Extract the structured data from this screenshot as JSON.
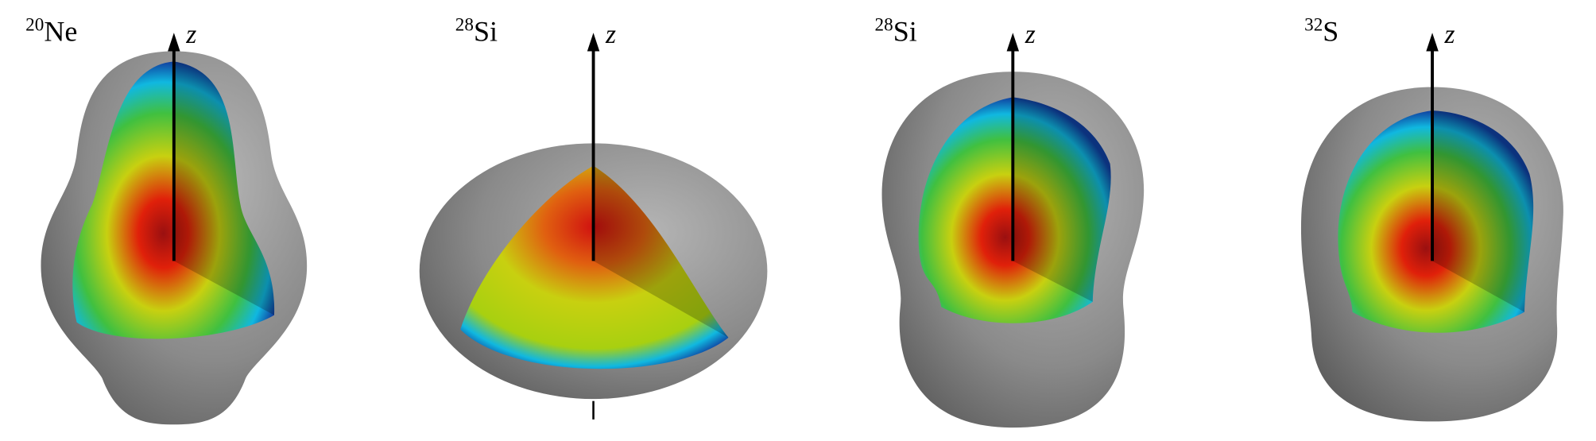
{
  "panels": [
    {
      "mass": "20",
      "element": "Ne",
      "axis": "z"
    },
    {
      "mass": "28",
      "element": "Si",
      "axis": "z"
    },
    {
      "mass": "28",
      "element": "Si",
      "axis": "z"
    },
    {
      "mass": "32",
      "element": "S",
      "axis": "z"
    }
  ]
}
